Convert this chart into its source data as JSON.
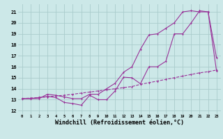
{
  "background_color": "#cce8e8",
  "grid_color": "#aacccc",
  "line_color": "#993399",
  "xlabel": "Windchill (Refroidissement éolien,°C)",
  "xlabel_fontsize": 6,
  "ytick_values": [
    12,
    13,
    14,
    15,
    16,
    17,
    18,
    19,
    20,
    21
  ],
  "xlim": [
    -0.5,
    23.5
  ],
  "ylim": [
    11.7,
    21.7
  ],
  "curve1_x": [
    0,
    1,
    2,
    3,
    4,
    5,
    6,
    7,
    8,
    9,
    10,
    11,
    12,
    13,
    14,
    15,
    16,
    17,
    18,
    19,
    20,
    21,
    22,
    23
  ],
  "curve1_y": [
    13.1,
    13.1,
    13.2,
    13.3,
    13.2,
    12.75,
    12.65,
    12.5,
    13.4,
    13.0,
    13.0,
    13.8,
    15.05,
    15.0,
    14.45,
    16.0,
    16.0,
    16.5,
    19.0,
    19.0,
    20.0,
    21.1,
    21.0,
    16.8
  ],
  "curve2_x": [
    0,
    1,
    2,
    3,
    4,
    5,
    6,
    7,
    8,
    9,
    10,
    11,
    12,
    13,
    14,
    15,
    16,
    17,
    18,
    19,
    20,
    21,
    22,
    23
  ],
  "curve2_y": [
    13.1,
    13.1,
    13.1,
    13.5,
    13.4,
    13.25,
    13.1,
    13.1,
    13.5,
    13.5,
    14.0,
    14.5,
    15.5,
    16.0,
    17.6,
    18.9,
    19.0,
    19.5,
    20.0,
    21.0,
    21.1,
    21.0,
    21.0,
    15.6
  ],
  "curve3_x": [
    0,
    1,
    2,
    3,
    4,
    5,
    6,
    7,
    8,
    9,
    10,
    11,
    12,
    13,
    14,
    15,
    16,
    17,
    18,
    19,
    20,
    21,
    22,
    23
  ],
  "curve3_y": [
    13.1,
    13.15,
    13.2,
    13.25,
    13.35,
    13.4,
    13.5,
    13.6,
    13.7,
    13.8,
    13.9,
    14.0,
    14.1,
    14.2,
    14.4,
    14.55,
    14.7,
    14.85,
    15.0,
    15.15,
    15.3,
    15.45,
    15.55,
    15.7
  ],
  "marker_size": 2.0,
  "linewidth": 0.8
}
